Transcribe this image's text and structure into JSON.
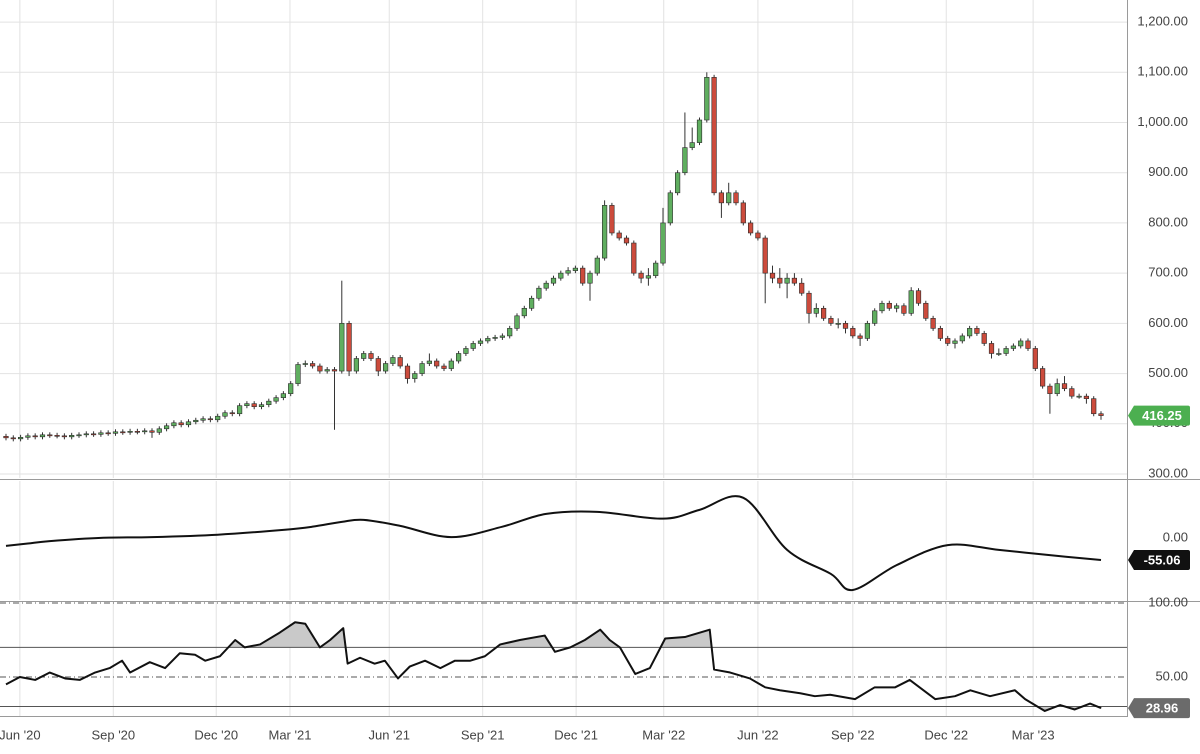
{
  "chart_data": [
    {
      "type": "candlestick",
      "open": [
        375,
        372,
        370,
        373,
        376,
        374,
        378,
        377,
        376,
        374,
        377,
        378,
        380,
        379,
        382,
        381,
        384,
        383,
        385,
        384,
        386,
        383,
        390,
        396,
        402,
        398,
        404,
        407,
        410,
        408,
        415,
        422,
        420,
        436,
        440,
        434,
        438,
        445,
        452,
        460,
        480,
        518,
        520,
        515,
        505,
        508,
        505,
        600,
        505,
        530,
        540,
        530,
        505,
        520,
        532,
        515,
        490,
        500,
        520,
        525,
        515,
        510,
        525,
        540,
        550,
        560,
        565,
        570,
        572,
        575,
        590,
        615,
        630,
        650,
        670,
        680,
        690,
        700,
        705,
        710,
        680,
        700,
        730,
        835,
        780,
        770,
        760,
        700,
        690,
        695,
        720,
        800,
        860,
        900,
        950,
        960,
        1005,
        1090,
        860,
        840,
        860,
        840,
        800,
        780,
        770,
        700,
        690,
        680,
        690,
        680,
        660,
        620,
        630,
        610,
        600,
        600,
        590,
        575,
        570,
        600,
        625,
        640,
        630,
        635,
        620,
        665,
        640,
        610,
        590,
        570,
        560,
        565,
        575,
        590,
        580,
        560,
        540,
        540,
        550,
        555,
        565,
        550,
        510,
        475,
        460,
        480,
        470,
        455,
        455,
        450,
        420
      ],
      "high": [
        380,
        377,
        378,
        381,
        381,
        383,
        383,
        382,
        381,
        382,
        383,
        385,
        385,
        387,
        387,
        389,
        389,
        390,
        390,
        391,
        391,
        395,
        401,
        407,
        407,
        409,
        412,
        415,
        415,
        420,
        427,
        427,
        441,
        445,
        445,
        443,
        450,
        457,
        465,
        485,
        523,
        526,
        525,
        520,
        513,
        513,
        685,
        605,
        535,
        545,
        545,
        535,
        525,
        537,
        537,
        520,
        505,
        525,
        540,
        530,
        520,
        530,
        545,
        555,
        565,
        570,
        575,
        577,
        580,
        595,
        620,
        635,
        655,
        675,
        685,
        695,
        705,
        712,
        715,
        715,
        705,
        735,
        845,
        840,
        785,
        775,
        765,
        705,
        710,
        725,
        830,
        865,
        905,
        1020,
        990,
        1010,
        1100,
        1095,
        865,
        880,
        865,
        845,
        805,
        785,
        775,
        715,
        710,
        700,
        700,
        690,
        665,
        640,
        635,
        615,
        610,
        605,
        595,
        580,
        605,
        630,
        645,
        645,
        640,
        640,
        672,
        670,
        645,
        615,
        595,
        575,
        570,
        580,
        595,
        595,
        585,
        565,
        550,
        555,
        560,
        570,
        570,
        555,
        515,
        480,
        490,
        495,
        475,
        460,
        460,
        455,
        425
      ],
      "low": [
        367,
        365,
        365,
        368,
        369,
        369,
        372,
        371,
        369,
        369,
        372,
        373,
        374,
        374,
        376,
        376,
        378,
        378,
        379,
        379,
        372,
        378,
        385,
        391,
        393,
        393,
        399,
        402,
        403,
        403,
        410,
        415,
        415,
        431,
        429,
        429,
        433,
        440,
        447,
        455,
        475,
        513,
        510,
        500,
        500,
        388,
        500,
        495,
        500,
        525,
        525,
        495,
        500,
        515,
        510,
        480,
        482,
        495,
        515,
        510,
        505,
        505,
        520,
        535,
        545,
        555,
        560,
        565,
        567,
        570,
        585,
        610,
        625,
        645,
        665,
        675,
        685,
        695,
        700,
        675,
        645,
        695,
        725,
        775,
        765,
        755,
        695,
        680,
        675,
        690,
        715,
        795,
        855,
        895,
        945,
        955,
        1000,
        855,
        810,
        835,
        835,
        795,
        775,
        765,
        640,
        680,
        670,
        650,
        675,
        655,
        600,
        612,
        605,
        595,
        590,
        580,
        570,
        555,
        565,
        595,
        620,
        625,
        622,
        615,
        615,
        635,
        605,
        585,
        565,
        555,
        550,
        560,
        570,
        575,
        555,
        530,
        535,
        535,
        545,
        550,
        545,
        505,
        470,
        420,
        455,
        465,
        450,
        450,
        440,
        415,
        408
      ],
      "close": [
        372,
        370,
        373,
        376,
        374,
        378,
        377,
        376,
        374,
        377,
        378,
        380,
        379,
        382,
        381,
        384,
        383,
        385,
        384,
        386,
        383,
        390,
        396,
        402,
        398,
        404,
        407,
        410,
        408,
        415,
        422,
        420,
        436,
        440,
        434,
        438,
        445,
        452,
        460,
        480,
        518,
        520,
        515,
        505,
        508,
        505,
        600,
        505,
        530,
        540,
        530,
        505,
        520,
        532,
        515,
        490,
        500,
        520,
        525,
        515,
        510,
        525,
        540,
        550,
        560,
        565,
        570,
        572,
        575,
        590,
        615,
        630,
        650,
        670,
        680,
        690,
        700,
        705,
        710,
        680,
        700,
        730,
        835,
        780,
        770,
        760,
        700,
        690,
        695,
        720,
        800,
        860,
        900,
        950,
        960,
        1005,
        1090,
        860,
        840,
        860,
        840,
        800,
        780,
        770,
        700,
        690,
        680,
        690,
        680,
        660,
        620,
        630,
        610,
        600,
        600,
        590,
        575,
        570,
        600,
        625,
        640,
        630,
        635,
        620,
        665,
        640,
        610,
        590,
        570,
        560,
        565,
        575,
        590,
        580,
        560,
        540,
        540,
        550,
        555,
        565,
        550,
        510,
        475,
        460,
        480,
        470,
        455,
        455,
        450,
        420,
        416.25
      ],
      "up_color": "#5fae5f",
      "down_color": "#cc4b3c",
      "tag_color": "#4caf50",
      "xlim": [
        -0.82,
        153.56
      ],
      "ylim": [
        292,
        1244
      ],
      "yticks": [
        {
          "value": 300,
          "label": "300.00"
        },
        {
          "value": 400,
          "label": "400.00"
        },
        {
          "value": 500,
          "label": "500.00"
        },
        {
          "value": 600,
          "label": "600.00"
        },
        {
          "value": 700,
          "label": "700.00"
        },
        {
          "value": 800,
          "label": "800.00"
        },
        {
          "value": 900,
          "label": "900.00"
        },
        {
          "value": 1000,
          "label": "1,000.00"
        },
        {
          "value": 1100,
          "label": "1,100.00"
        },
        {
          "value": 1200,
          "label": "1,200.00"
        }
      ],
      "grid": true
    },
    {
      "type": "line",
      "x": [
        0,
        3,
        6,
        13,
        20,
        29,
        38,
        42,
        46,
        49,
        54,
        61,
        68,
        74,
        81,
        90,
        95,
        101,
        107,
        113,
        116,
        122,
        129,
        136,
        144,
        150
      ],
      "values": [
        -20,
        -14,
        -8,
        0,
        2,
        8,
        20,
        28,
        40,
        45,
        30,
        2,
        28,
        60,
        65,
        48,
        70,
        100,
        -30,
        -90,
        -130,
        -68,
        -18,
        -30,
        -45,
        -55.06
      ],
      "color": "#111111",
      "tag_color": "#111111",
      "smooth": true,
      "xlim": [
        -0.82,
        153.56
      ],
      "ylim": [
        -155,
        142
      ],
      "yticks": [
        {
          "value": 0,
          "label": "0.00"
        }
      ]
    },
    {
      "type": "line",
      "x": [
        0,
        1.9,
        4,
        6,
        8.1,
        10.1,
        12.2,
        14.2,
        15.9,
        17,
        19.7,
        21.8,
        23.8,
        25.9,
        27.3,
        29.3,
        31.4,
        32.7,
        34.8,
        37.5,
        39.6,
        41,
        43,
        44.4,
        46.2,
        46.8,
        48.5,
        50.5,
        51.9,
        53.7,
        55.3,
        57.4,
        59.5,
        61.5,
        63.6,
        65.6,
        67.7,
        70.4,
        73.8,
        75.2,
        77.3,
        79.3,
        81.4,
        82.7,
        84.1,
        86.2,
        88.2,
        90.3,
        93,
        96.4,
        97,
        99.2,
        101.9,
        104,
        106,
        108.8,
        110.8,
        112.9,
        116.3,
        119,
        121.8,
        123.8,
        127.3,
        130,
        132.1,
        134.8,
        138.2,
        139.6,
        142.3,
        144.4,
        146.4,
        148.5,
        150
      ],
      "values": [
        45,
        50,
        48,
        53,
        49,
        48,
        53,
        56,
        61,
        53,
        60,
        56,
        66,
        65,
        61,
        64,
        75,
        70,
        72,
        80,
        87,
        86,
        70,
        75,
        83,
        59,
        63,
        59,
        61,
        49,
        57,
        61,
        56,
        61,
        61,
        64,
        72,
        75,
        78,
        67,
        70,
        75,
        82,
        75,
        70,
        52,
        56,
        76,
        77,
        82,
        55,
        53,
        49,
        43,
        41,
        39,
        37,
        38,
        35,
        43,
        43,
        48,
        35,
        37,
        41,
        37,
        41,
        35,
        27,
        31,
        28,
        32,
        28.96
      ],
      "color": "#111111",
      "fill_color": "#c9c9c9",
      "tag_color": "#6b6b6b",
      "levels": [
        70,
        30
      ],
      "xlim": [
        -0.82,
        153.56
      ],
      "ylim": [
        23.6,
        100.7
      ],
      "yticks": [
        {
          "value": 100,
          "label": "100.00"
        },
        {
          "value": 50,
          "label": "50.00"
        }
      ],
      "xticks": [
        {
          "value": 1.9,
          "label": "Jun '20"
        },
        {
          "value": 14.7,
          "label": "Sep '20"
        },
        {
          "value": 28.8,
          "label": "Dec '20"
        },
        {
          "value": 38.9,
          "label": "Mar '21"
        },
        {
          "value": 52.5,
          "label": "Jun '21"
        },
        {
          "value": 65.3,
          "label": "Sep '21"
        },
        {
          "value": 78.1,
          "label": "Dec '21"
        },
        {
          "value": 90.1,
          "label": "Mar '22"
        },
        {
          "value": 103,
          "label": "Jun '22"
        },
        {
          "value": 116,
          "label": "Sep '22"
        },
        {
          "value": 128.8,
          "label": "Dec '22"
        },
        {
          "value": 140.7,
          "label": "Mar '23"
        }
      ]
    }
  ]
}
